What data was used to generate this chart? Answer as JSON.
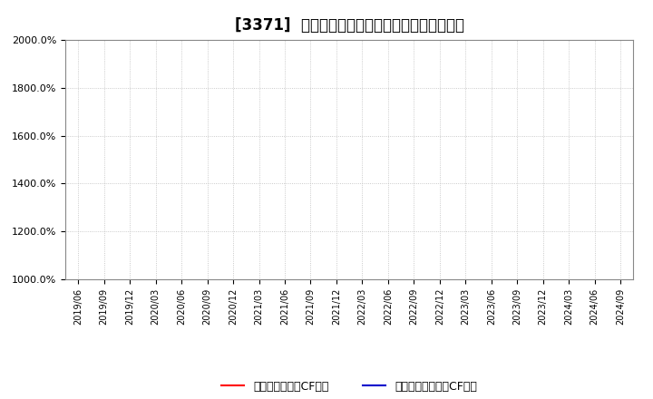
{
  "title": "[3371]  有利子負債キャッシュフロー比率の推移",
  "title_fontsize": 12,
  "ylim": [
    1000,
    2000
  ],
  "yticks": [
    1000,
    1200,
    1400,
    1600,
    1800,
    2000
  ],
  "ytick_labels": [
    "1000.0%",
    "1200.0%",
    "1400.0%",
    "1600.0%",
    "1800.0%",
    "2000.0%"
  ],
  "x_labels": [
    "2019/06",
    "2019/09",
    "2019/12",
    "2020/03",
    "2020/06",
    "2020/09",
    "2020/12",
    "2021/03",
    "2021/06",
    "2021/09",
    "2021/12",
    "2022/03",
    "2022/06",
    "2022/09",
    "2022/12",
    "2023/03",
    "2023/06",
    "2023/09",
    "2023/12",
    "2024/03",
    "2024/06",
    "2024/09"
  ],
  "legend_label1": "有利子負債営業CF比率",
  "legend_label2": "有利子負債フリーCF比率",
  "line1_color": "#ff0000",
  "line2_color": "#0000cc",
  "background_color": "#ffffff",
  "plot_bg_color": "#ffffff",
  "grid_color": "#bbbbbb",
  "border_color": "#888888"
}
